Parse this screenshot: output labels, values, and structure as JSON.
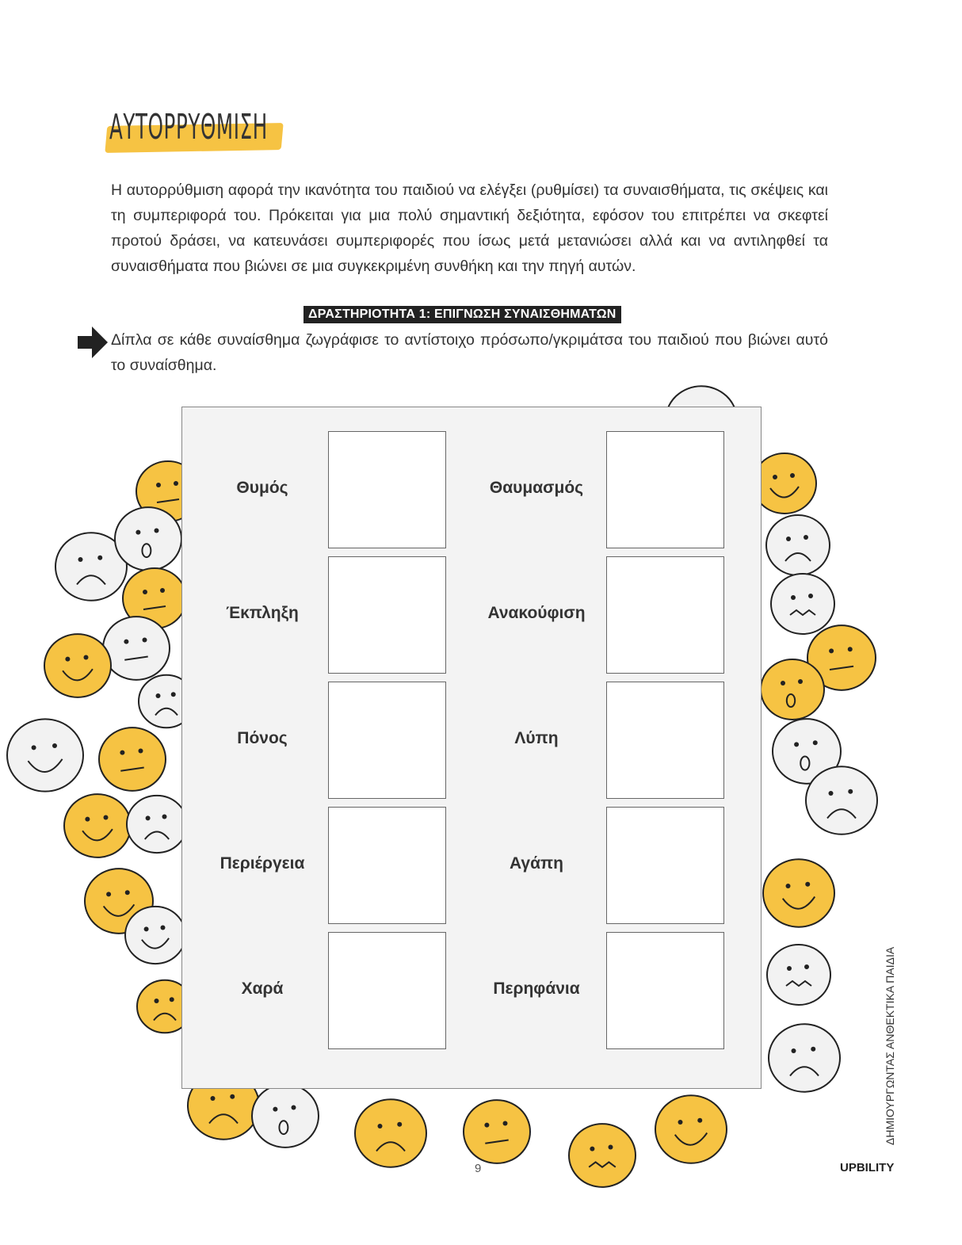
{
  "header": {
    "title": "ΑΥΤΟΡΡΥΘΜΙΣΗ"
  },
  "intro": "Η αυτορρύθμιση αφορά την ικανότητα του παιδιού να ελέγξει (ρυθμίσει) τα συναισθήματα, τις σκέψεις και τη συμπεριφορά του. Πρόκειται για μια πολύ σημαντική δεξιότητα, εφόσον του επιτρέπει να σκεφτεί προτού δράσει, να κατευνάσει συμπεριφορές που ίσως μετά μετανιώσει αλλά και να αντιληφθεί τα συναισθήματα που βιώνει σε μια συγκεκριμένη συνθήκη και την πηγή αυτών.",
  "activity": {
    "title": "ΔΡΑΣΤΗΡΙΟΤΗΤΑ 1: ΕΠΙΓΝΩΣΗ ΣΥΝΑΙΣΘΗΜΑΤΩΝ",
    "instruction": "Δίπλα σε κάθε συναίσθημα ζωγράφισε το αντίστοιχο πρόσωπο/γκριμάτσα του παιδιού που βιώνει αυτό το συναίσθημα.",
    "left": [
      "Θυμός",
      "Έκπληξη",
      "Πόνος",
      "Περιέργεια",
      "Χαρά"
    ],
    "right": [
      "Θαυμασμός",
      "Ανακούφιση",
      "Λύπη",
      "Αγάπη",
      "Περηφάνια"
    ]
  },
  "footer": {
    "side_text": "ΔΗΜΙΟΥΡΓΩΝΤΑΣ ΑΝΘΕΚΤΙΚΑ ΠΑΙΔΙΑ",
    "brand": "UPBILITY",
    "page": "9"
  },
  "colors": {
    "highlight": "#f6c343",
    "face_yellow": "#f6c343",
    "face_white": "#f2f2f2"
  },
  "icons": {
    "arrow": "arrow-right-icon",
    "faces": "emoji-face-icon"
  }
}
